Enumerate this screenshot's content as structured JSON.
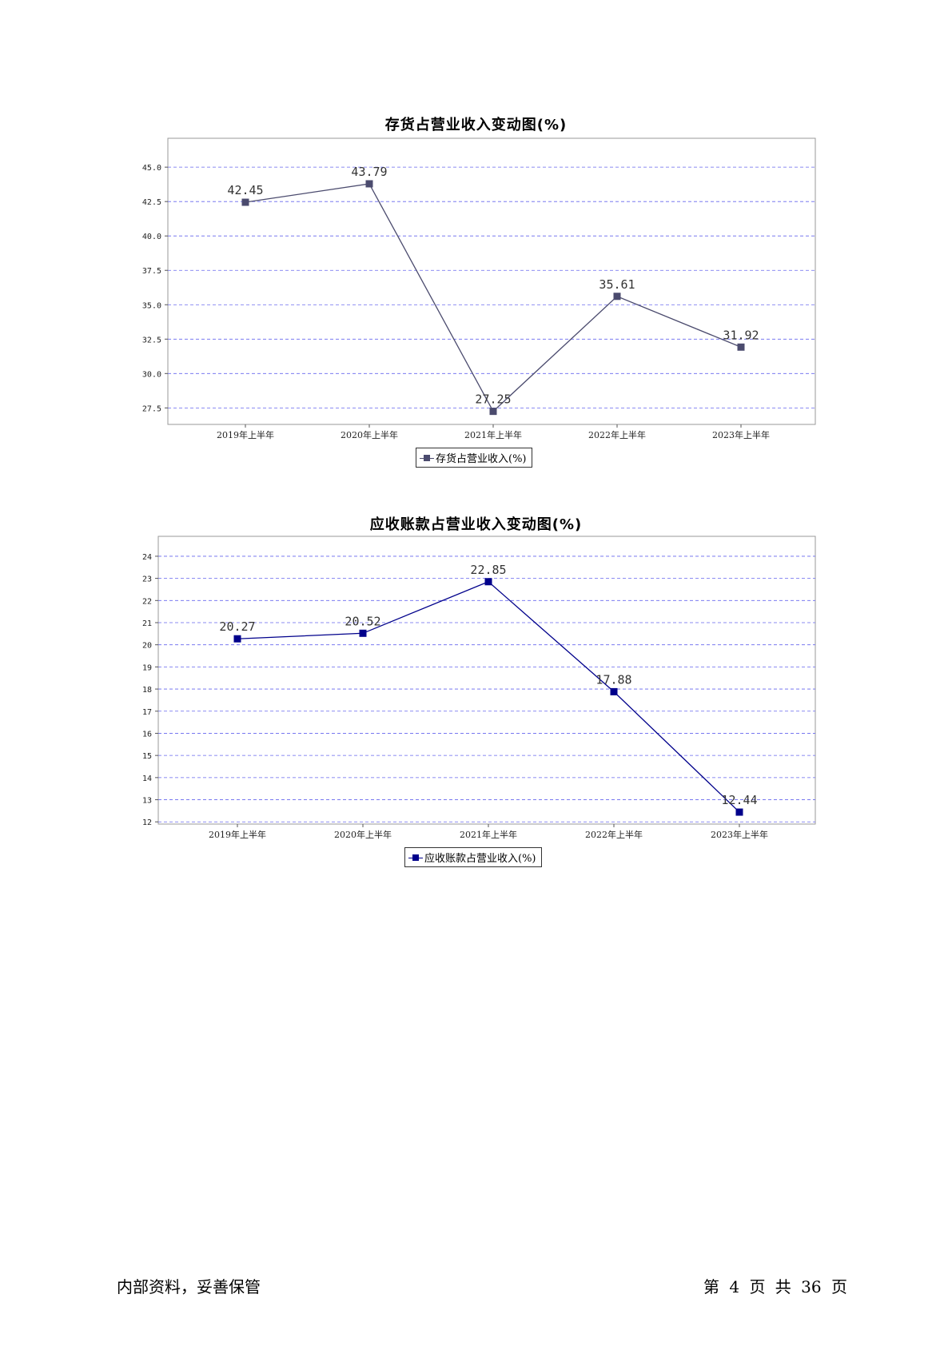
{
  "charts": [
    {
      "title": "存货占营业收入变动图(%)",
      "legend": "存货占营业收入(%)",
      "color": "#4b4b6e"
    },
    {
      "title": "应收账款占营业收入变动图(%)",
      "legend": "应收账款占营业收入(%)",
      "color": "#00008b"
    }
  ],
  "chart_data": [
    {
      "type": "line",
      "title": "存货占营业收入变动图(%)",
      "categories": [
        "2019年上半年",
        "2020年上半年",
        "2021年上半年",
        "2022年上半年",
        "2023年上半年"
      ],
      "series": [
        {
          "name": "存货占营业收入(%)",
          "values": [
            42.45,
            43.79,
            27.25,
            35.61,
            31.92
          ]
        }
      ],
      "value_labels": [
        "42.45",
        "43.79",
        "27.25",
        "35.61",
        "31.92"
      ],
      "y_ticks": [
        "27.5",
        "30.0",
        "32.5",
        "35.0",
        "37.5",
        "40.0",
        "42.5",
        "45.0"
      ],
      "ylim": [
        26.3,
        47.1
      ],
      "grid": true,
      "legend_position": "bottom"
    },
    {
      "type": "line",
      "title": "应收账款占营业收入变动图(%)",
      "categories": [
        "2019年上半年",
        "2020年上半年",
        "2021年上半年",
        "2022年上半年",
        "2023年上半年"
      ],
      "series": [
        {
          "name": "应收账款占营业收入(%)",
          "values": [
            20.27,
            20.52,
            22.85,
            17.88,
            12.44
          ]
        }
      ],
      "value_labels": [
        "20.27",
        "20.52",
        "22.85",
        "17.88",
        "12.44"
      ],
      "y_ticks": [
        "12",
        "13",
        "14",
        "15",
        "16",
        "17",
        "18",
        "19",
        "20",
        "21",
        "22",
        "23",
        "24"
      ],
      "ylim": [
        11.9,
        24.9
      ],
      "grid": true,
      "legend_position": "bottom"
    }
  ],
  "footer": {
    "left": "内部资料，妥善保管",
    "right": "第 4 页  共 36 页"
  }
}
